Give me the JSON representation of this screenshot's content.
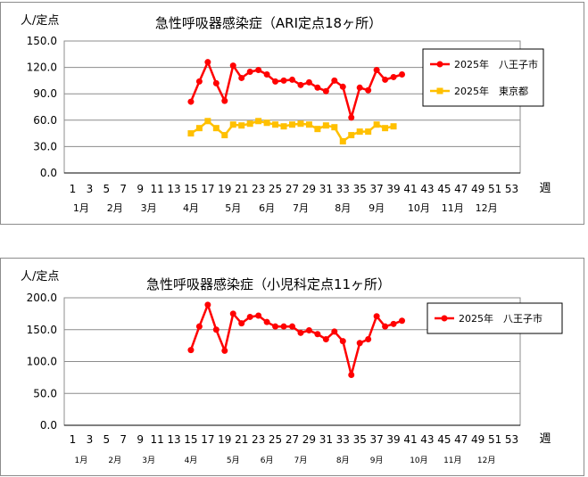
{
  "chart_data": [
    {
      "type": "line",
      "title": "急性呼吸器感染症（ARI定点18ヶ所）",
      "ylabel": "人/定点",
      "xlabel": "週",
      "ylim": [
        0,
        150
      ],
      "yticks": [
        "0.0",
        "30.0",
        "60.0",
        "90.0",
        "120.0",
        "150.0"
      ],
      "xticks": [
        1,
        3,
        5,
        7,
        9,
        11,
        13,
        15,
        17,
        19,
        21,
        23,
        25,
        27,
        29,
        31,
        33,
        35,
        37,
        39,
        41,
        43,
        45,
        47,
        49,
        51,
        53
      ],
      "months": [
        {
          "label": "1月",
          "week": 2
        },
        {
          "label": "2月",
          "week": 6
        },
        {
          "label": "3月",
          "week": 10
        },
        {
          "label": "4月",
          "week": 15
        },
        {
          "label": "5月",
          "week": 20
        },
        {
          "label": "6月",
          "week": 24
        },
        {
          "label": "7月",
          "week": 28
        },
        {
          "label": "8月",
          "week": 33
        },
        {
          "label": "9月",
          "week": 37
        },
        {
          "label": "10月",
          "week": 42
        },
        {
          "label": "11月",
          "week": 46
        },
        {
          "label": "12月",
          "week": 50
        }
      ],
      "grid": true,
      "legend_position": "top-right",
      "series": [
        {
          "name": "2025年　八王子市",
          "color": "#ff0000",
          "marker": "circle",
          "x": [
            15,
            16,
            17,
            18,
            19,
            20,
            21,
            22,
            23,
            24,
            25,
            26,
            27,
            28,
            29,
            30,
            31,
            32,
            33,
            34,
            35,
            36,
            37,
            38,
            39,
            40
          ],
          "values": [
            81,
            104,
            126,
            102,
            82,
            122,
            108,
            115,
            117,
            112,
            104,
            105,
            106,
            100,
            103,
            97,
            93,
            105,
            98,
            63,
            97,
            94,
            117,
            106,
            109,
            112
          ]
        },
        {
          "name": "2025年　東京都",
          "color": "#ffc000",
          "marker": "square",
          "x": [
            15,
            16,
            17,
            18,
            19,
            20,
            21,
            22,
            23,
            24,
            25,
            26,
            27,
            28,
            29,
            30,
            31,
            32,
            33,
            34,
            35,
            36,
            37,
            38,
            39
          ],
          "values": [
            45,
            51,
            59,
            51,
            43,
            55,
            54,
            56,
            59,
            57,
            55,
            53,
            55,
            56,
            55,
            50,
            54,
            52,
            36,
            43,
            47,
            47,
            55,
            51,
            53
          ]
        }
      ]
    },
    {
      "type": "line",
      "title": "急性呼吸器感染症（小児科定点11ヶ所）",
      "ylabel": "人/定点",
      "xlabel": "週",
      "ylim": [
        0,
        200
      ],
      "yticks": [
        "0.0",
        "50.0",
        "100.0",
        "150.0",
        "200.0"
      ],
      "xticks": [
        1,
        3,
        5,
        7,
        9,
        11,
        13,
        15,
        17,
        19,
        21,
        23,
        25,
        27,
        29,
        31,
        33,
        35,
        37,
        39,
        41,
        43,
        45,
        47,
        49,
        51,
        53
      ],
      "months": [
        {
          "label": "1月",
          "week": 2
        },
        {
          "label": "2月",
          "week": 6
        },
        {
          "label": "3月",
          "week": 10
        },
        {
          "label": "4月",
          "week": 15
        },
        {
          "label": "5月",
          "week": 20
        },
        {
          "label": "6月",
          "week": 24
        },
        {
          "label": "7月",
          "week": 28
        },
        {
          "label": "8月",
          "week": 33
        },
        {
          "label": "9月",
          "week": 37
        },
        {
          "label": "10月",
          "week": 42
        },
        {
          "label": "11月",
          "week": 46
        },
        {
          "label": "12月",
          "week": 50
        }
      ],
      "grid": true,
      "legend_position": "top-right",
      "series": [
        {
          "name": "2025年　八王子市",
          "color": "#ff0000",
          "marker": "circle",
          "x": [
            15,
            16,
            17,
            18,
            19,
            20,
            21,
            22,
            23,
            24,
            25,
            26,
            27,
            28,
            29,
            30,
            31,
            32,
            33,
            34,
            35,
            36,
            37,
            38,
            39,
            40
          ],
          "values": [
            118,
            155,
            189,
            150,
            117,
            175,
            160,
            170,
            172,
            162,
            155,
            155,
            155,
            145,
            149,
            143,
            135,
            147,
            132,
            79,
            129,
            135,
            171,
            155,
            159,
            164
          ]
        }
      ]
    }
  ]
}
